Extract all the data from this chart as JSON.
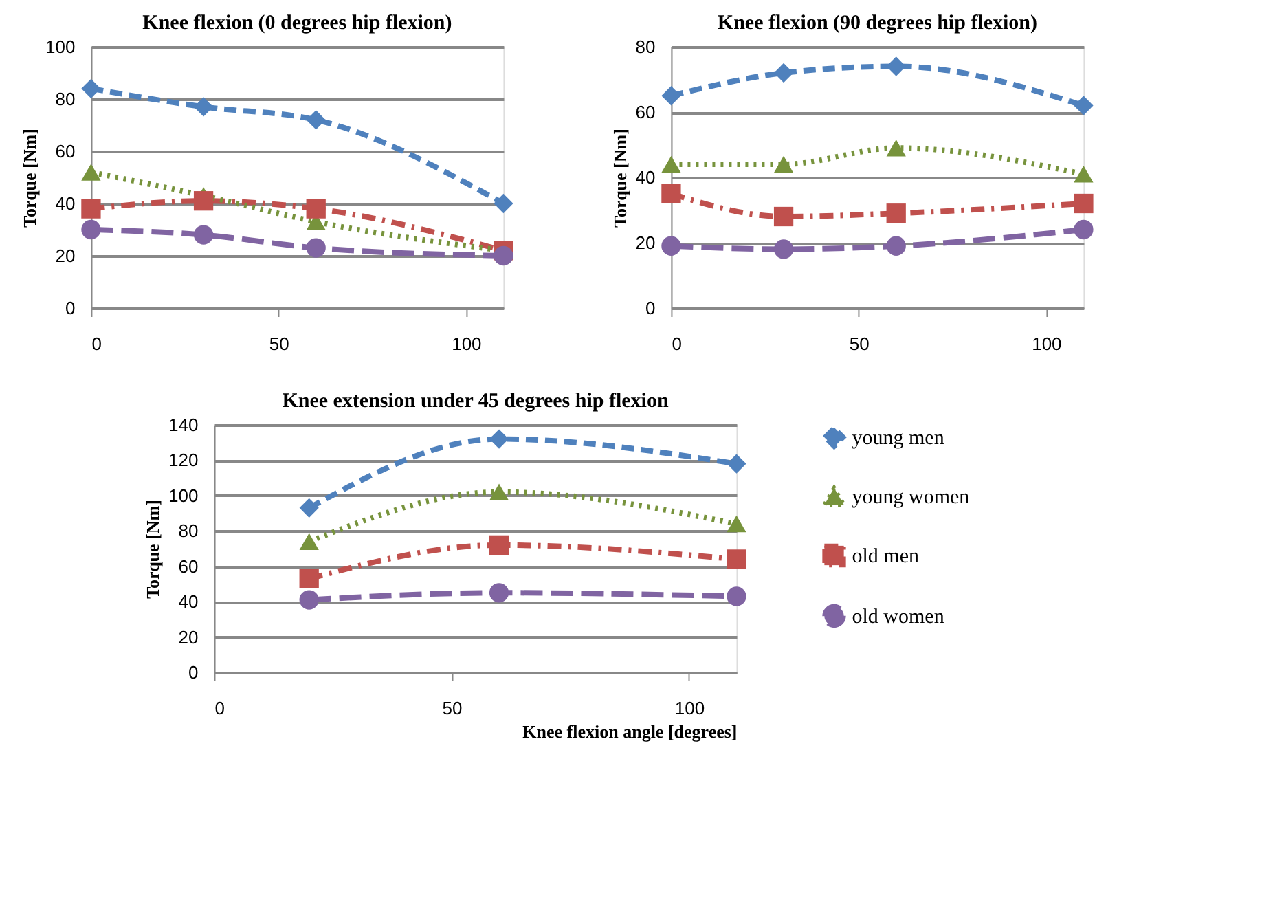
{
  "chart_data": [
    {
      "type": "line",
      "title": "Knee flexion  (0 degrees hip flexion)",
      "ylabel": "Torque [Nm]",
      "x": [
        0,
        30,
        60,
        110
      ],
      "xlim": [
        0,
        110
      ],
      "xticks": [
        0,
        50,
        100
      ],
      "ylim": [
        0,
        100
      ],
      "yticks": [
        0,
        20,
        40,
        60,
        80,
        100
      ],
      "grid": "y",
      "legend": false,
      "series": [
        {
          "color": "#4f81bd",
          "values": [
            84,
            77,
            72,
            40
          ],
          "marker": "diamond",
          "line_style": "dashed"
        },
        {
          "color": "#77933c",
          "values": [
            52,
            43,
            33,
            22
          ],
          "marker": "triangle",
          "line_style": "dotted"
        },
        {
          "color": "#c0504d",
          "values": [
            38,
            41,
            38,
            22
          ],
          "marker": "square",
          "line_style": "dashdot"
        },
        {
          "color": "#8064a2",
          "values": [
            30,
            28,
            23,
            20
          ],
          "marker": "circle",
          "line_style": "longdash"
        }
      ]
    },
    {
      "type": "line",
      "title": "Knee flexion  (90 degrees hip flexion)",
      "ylabel": "Torque [Nm]",
      "x": [
        0,
        30,
        60,
        110
      ],
      "xlim": [
        0,
        110
      ],
      "xticks": [
        0,
        50,
        100
      ],
      "ylim": [
        0,
        80
      ],
      "yticks": [
        0,
        20,
        40,
        60,
        80
      ],
      "grid": "y",
      "legend": false,
      "series": [
        {
          "color": "#4f81bd",
          "values": [
            65,
            72,
            74,
            62
          ],
          "marker": "diamond",
          "line_style": "dashed"
        },
        {
          "color": "#77933c",
          "values": [
            44,
            44,
            49,
            41
          ],
          "marker": "triangle",
          "line_style": "dotted"
        },
        {
          "color": "#c0504d",
          "values": [
            35,
            28,
            29,
            32
          ],
          "marker": "square",
          "line_style": "dashdot"
        },
        {
          "color": "#8064a2",
          "values": [
            19,
            18,
            19,
            24
          ],
          "marker": "circle",
          "line_style": "longdash"
        }
      ]
    },
    {
      "type": "line",
      "title": "Knee extension under 45 degrees hip flexion",
      "ylabel": "Torque [Nm]",
      "xlabel": "Knee flexion angle [degrees]",
      "x": [
        20,
        60,
        110
      ],
      "xlim": [
        0,
        110
      ],
      "xticks": [
        0,
        50,
        100
      ],
      "ylim": [
        0,
        140
      ],
      "yticks": [
        0,
        20,
        40,
        60,
        80,
        100,
        120,
        140
      ],
      "grid": "y",
      "legend": "right",
      "series": [
        {
          "name": "young men",
          "color": "#4f81bd",
          "values": [
            93,
            132,
            118
          ],
          "marker": "diamond",
          "line_style": "dashed"
        },
        {
          "name": "young women",
          "color": "#77933c",
          "values": [
            74,
            102,
            84
          ],
          "marker": "triangle",
          "line_style": "dotted"
        },
        {
          "name": "old men",
          "color": "#c0504d",
          "values": [
            53,
            72,
            64
          ],
          "marker": "square",
          "line_style": "dashdot"
        },
        {
          "name": "old women",
          "color": "#8064a2",
          "values": [
            41,
            45,
            43
          ],
          "marker": "circle",
          "line_style": "longdash"
        }
      ]
    }
  ]
}
